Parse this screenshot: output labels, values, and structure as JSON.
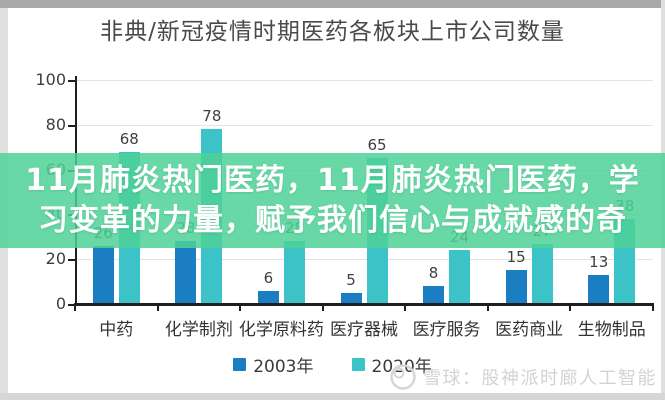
{
  "chart_data": {
    "type": "bar",
    "title": "非典/新冠疫情时期医药各板块上市公司数量",
    "categories": [
      "中药",
      "化学制剂",
      "化学原料药",
      "医疗器械",
      "医疗服务",
      "医药商业",
      "生物制品"
    ],
    "series": [
      {
        "name": "2003年",
        "color": "#1b7ec3",
        "values": [
          26,
          28,
          6,
          5,
          8,
          15,
          13
        ]
      },
      {
        "name": "2020年",
        "color": "#3cc3c8",
        "values": [
          68,
          78,
          28,
          65,
          24,
          27,
          38
        ]
      }
    ],
    "visible_value_labels": [
      "68",
      "78",
      "6",
      "65",
      "5",
      "8",
      "15",
      "13",
      "38",
      "24"
    ],
    "xlabel": "",
    "ylabel": "",
    "ylim": [
      0,
      100
    ],
    "yticks": [
      0,
      20,
      40,
      60,
      80,
      100
    ],
    "grid": true,
    "legend_position": "bottom"
  },
  "overlay_banner": {
    "line1": "11月肺炎热门医药，11月肺炎热门医药，学",
    "line2": "习变革的力量，赋予我们信心与成就感的奇",
    "bg_color": "#4DD196",
    "text_color": "#ffffff"
  },
  "watermark": {
    "logo": "xueqiu-snowball-logo",
    "text": "雪球：股神派时廊人工智能"
  },
  "colors": {
    "series_2003": "#1b7ec3",
    "series_2020": "#3cc3c8",
    "axis": "#1f1f1f",
    "gridline": "#e3e3e3",
    "title_text": "#4a4a4a",
    "overlay_green": "#4DD196"
  }
}
